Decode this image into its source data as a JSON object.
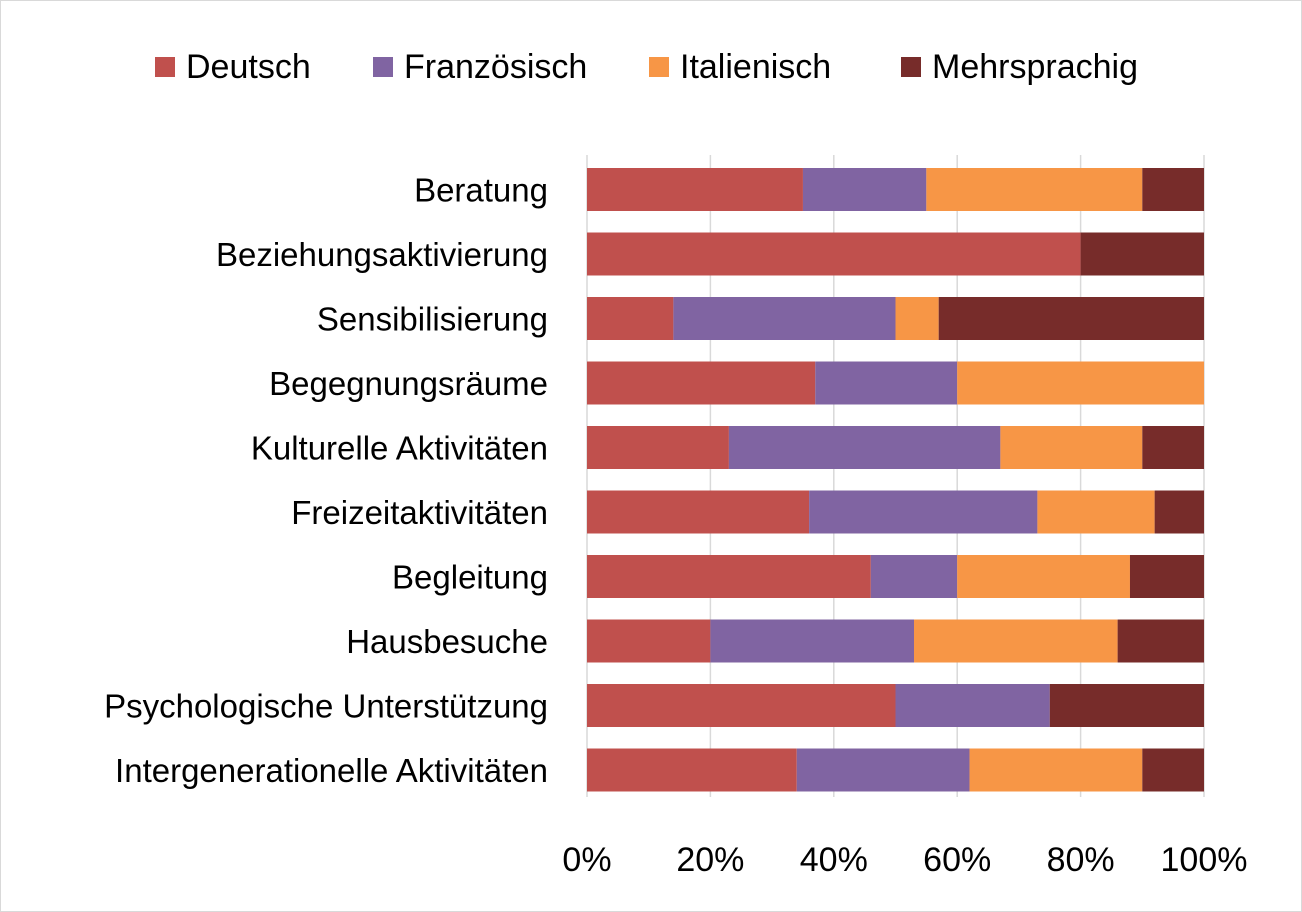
{
  "chart_data": {
    "type": "bar",
    "orientation": "horizontal",
    "stacked": "percent",
    "title": "",
    "xlabel": "",
    "ylabel": "",
    "xlim": [
      0,
      100
    ],
    "legend_position": "top",
    "gridlines": "vertical",
    "categories": [
      "Beratung",
      "Beziehungsaktivierung",
      "Sensibilisierung",
      "Begegnungsräume",
      "Kulturelle Aktivitäten",
      "Freizeitaktivitäten",
      "Begleitung",
      "Hausbesuche",
      "Psychologische Unterstützung",
      "Intergenerationelle Aktivitäten"
    ],
    "x_ticks": [
      "0%",
      "20%",
      "40%",
      "60%",
      "80%",
      "100%"
    ],
    "x_tick_values": [
      0,
      20,
      40,
      60,
      80,
      100
    ],
    "series": [
      {
        "name": "Deutsch",
        "color": "#c0504d",
        "values": [
          35,
          80,
          14,
          37,
          23,
          36,
          46,
          20,
          50,
          34
        ]
      },
      {
        "name": "Französisch",
        "color": "#8064a2",
        "values": [
          20,
          0,
          36,
          23,
          44,
          37,
          14,
          33,
          25,
          28
        ]
      },
      {
        "name": "Italienisch",
        "color": "#f79646",
        "values": [
          35,
          0,
          7,
          40,
          23,
          19,
          28,
          33,
          0,
          28
        ]
      },
      {
        "name": "Mehrsprachig",
        "color": "#772c2a",
        "values": [
          10,
          20,
          43,
          0,
          10,
          8,
          12,
          14,
          25,
          10
        ]
      }
    ]
  }
}
